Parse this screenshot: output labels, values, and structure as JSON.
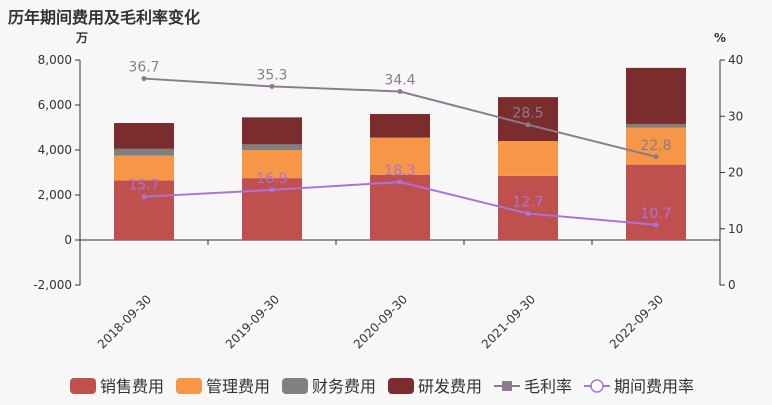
{
  "title": "历年期间费用及毛利率变化",
  "chart_data": {
    "type": "bar",
    "stacked": true,
    "title": "历年期间费用及毛利率变化",
    "categories": [
      "2018-09-30",
      "2019-09-30",
      "2020-09-30",
      "2021-09-30",
      "2022-09-30"
    ],
    "y_left": {
      "unit": "万",
      "range": [
        -2000,
        8000
      ],
      "ticks": [
        "-2,000",
        "0",
        "2,000",
        "4,000",
        "6,000",
        "8,000"
      ]
    },
    "y_right": {
      "unit": "%",
      "range": [
        0,
        40
      ],
      "ticks": [
        "0",
        "10",
        "20",
        "30",
        "40"
      ]
    },
    "series": [
      {
        "name": "销售费用",
        "type": "bar",
        "axis": "left",
        "color": "#c0504d",
        "values": [
          2650,
          2750,
          2900,
          2850,
          3350
        ]
      },
      {
        "name": "管理费用",
        "type": "bar",
        "axis": "left",
        "color": "#f79646",
        "values": [
          1100,
          1250,
          1650,
          1550,
          1650
        ]
      },
      {
        "name": "财务费用",
        "type": "bar",
        "axis": "left",
        "color": "#808080",
        "values": [
          300,
          250,
          0,
          0,
          150
        ]
      },
      {
        "name": "研发费用",
        "type": "bar",
        "axis": "left",
        "color": "#7b2c2c",
        "values": [
          1150,
          1200,
          1050,
          1950,
          2500
        ]
      },
      {
        "name": "毛利率",
        "type": "line",
        "axis": "right",
        "color": "#8c7b8f",
        "values": [
          36.7,
          35.3,
          34.4,
          28.5,
          22.8
        ],
        "labels": [
          "36.7",
          "35.3",
          "34.4",
          "28.5",
          "22.8"
        ]
      },
      {
        "name": "期间费用率",
        "type": "line",
        "axis": "right",
        "color": "#a974d9",
        "values": [
          15.7,
          16.9,
          18.3,
          12.7,
          10.7
        ],
        "labels": [
          "15.7",
          "16.9",
          "18.3",
          "12.7",
          "10.7"
        ]
      }
    ],
    "legend_position": "bottom",
    "grid": false
  }
}
